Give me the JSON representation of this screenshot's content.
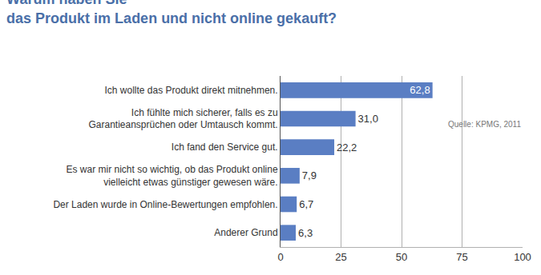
{
  "chart_data": {
    "type": "bar",
    "orientation": "horizontal",
    "title": "Warum haben Sie\ndas Produkt im Laden und nicht online gekauft?",
    "annotations": [
      "Quelle: KPMG, 2011"
    ],
    "categories": [
      "Ich wollte das Produkt direkt mitnehmen.",
      "Ich fühlte mich sicherer, falls es zu\nGarantieansprüchen oder Umtausch kommt.",
      "Ich fand den Service gut.",
      "Es war mir nicht so wichtig, ob das Produkt online\nvielleicht etwas günstiger gewesen wäre.",
      "Der Laden wurde in Online-Bewertungen empfohlen.",
      "Anderer Grund"
    ],
    "values": [
      62.8,
      31.0,
      22.2,
      7.9,
      6.7,
      6.3
    ],
    "value_labels": [
      "62,8",
      "31,0",
      "22,2",
      "7,9",
      "6,7",
      "6,3"
    ],
    "data_labels": true,
    "color": "#5a7ec3",
    "xlim": [
      0,
      100
    ],
    "xticks": [
      0,
      25,
      50,
      75,
      100
    ],
    "grid": true
  }
}
